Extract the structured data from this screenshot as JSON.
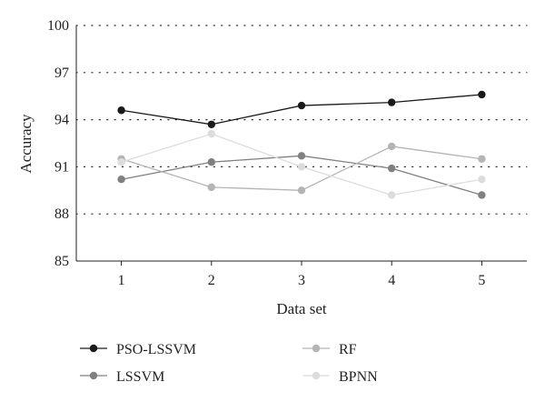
{
  "chart_data": {
    "type": "line",
    "xlabel": "Data set",
    "ylabel": "Accuracy",
    "x": [
      1,
      2,
      3,
      4,
      5
    ],
    "ylim": [
      85,
      100
    ],
    "yticks": [
      85,
      88,
      91,
      94,
      97,
      100
    ],
    "grid": "horizontal dotted",
    "legend_position": "bottom",
    "series": [
      {
        "name": "PSO-LSSVM",
        "values": [
          94.6,
          93.7,
          94.9,
          95.1,
          95.6
        ],
        "color": "#1a1a1a"
      },
      {
        "name": "LSSVM",
        "values": [
          90.2,
          91.3,
          91.7,
          90.9,
          89.2
        ],
        "color": "#808080"
      },
      {
        "name": "RF",
        "values": [
          91.5,
          89.7,
          89.5,
          92.3,
          91.5
        ],
        "color": "#b4b4b4"
      },
      {
        "name": "BPNN",
        "values": [
          91.3,
          93.1,
          91.0,
          89.2,
          90.2
        ],
        "color": "#dcdcdc"
      }
    ]
  }
}
